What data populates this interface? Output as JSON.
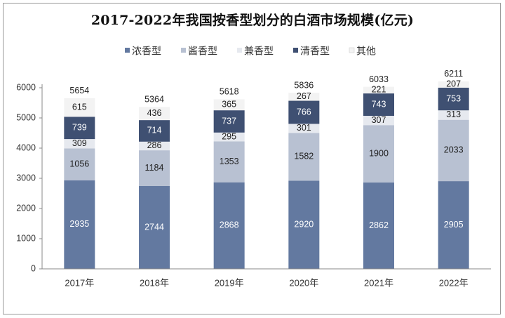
{
  "chart_data": {
    "type": "stacked-bar",
    "title": "2017-2022年我国按香型划分的白酒市场规模(亿元)",
    "categories": [
      "2017年",
      "2018年",
      "2019年",
      "2020年",
      "2021年",
      "2022年"
    ],
    "series": [
      {
        "name": "浓香型",
        "color": "#6379a0",
        "text_color": "#ffffff",
        "values": [
          2935,
          2744,
          2868,
          2920,
          2862,
          2905
        ]
      },
      {
        "name": "酱香型",
        "color": "#b8c1d2",
        "text_color": "#222222",
        "values": [
          1056,
          1184,
          1353,
          1582,
          1900,
          2033
        ]
      },
      {
        "name": "兼香型",
        "color": "#e6e9ef",
        "text_color": "#222222",
        "values": [
          309,
          286,
          295,
          301,
          307,
          313
        ]
      },
      {
        "name": "清香型",
        "color": "#3f5072",
        "text_color": "#ffffff",
        "values": [
          739,
          714,
          737,
          766,
          743,
          753
        ]
      },
      {
        "name": "其他",
        "color": "#f3f3f3",
        "text_color": "#222222",
        "values": [
          615,
          436,
          365,
          267,
          221,
          207
        ]
      }
    ],
    "totals": [
      5654,
      5364,
      5618,
      5836,
      6033,
      6211
    ],
    "ylim": [
      0,
      6000
    ],
    "yticks": [
      0,
      1000,
      2000,
      3000,
      4000,
      5000,
      6000
    ],
    "xlabel": "",
    "ylabel": "",
    "legend_position": "top-center",
    "grid": false
  }
}
